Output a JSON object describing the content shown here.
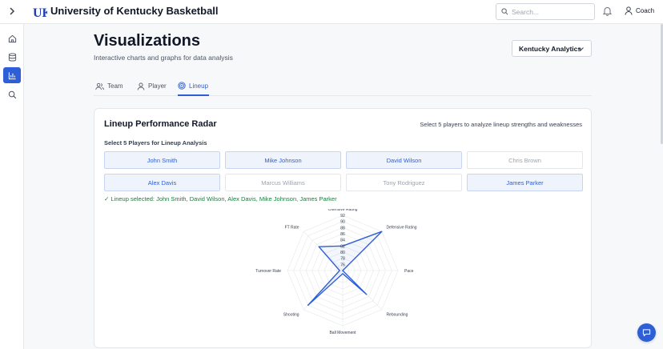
{
  "header": {
    "title": "University of Kentucky Basketball",
    "logo_icon": "uk-logo-icon",
    "search_placeholder": "Search...",
    "user_label": "Coach"
  },
  "page": {
    "title": "Visualizations",
    "subtitle": "Interactive charts and graphs for data analysis",
    "org_select": "Kentucky Analytics"
  },
  "tabs": [
    {
      "label": "Team",
      "icon": "users-icon",
      "active": false
    },
    {
      "label": "Player",
      "icon": "user-icon",
      "active": false
    },
    {
      "label": "Lineup",
      "icon": "target-icon",
      "active": true
    }
  ],
  "card": {
    "title": "Lineup Performance Radar",
    "hint": "Select 5 players to analyze lineup strengths and weaknesses",
    "section_label": "Select 5 Players for Lineup Analysis",
    "players": [
      {
        "name": "John Smith",
        "selected": true
      },
      {
        "name": "Mike Johnson",
        "selected": true
      },
      {
        "name": "David Wilson",
        "selected": true
      },
      {
        "name": "Chris Brown",
        "selected": false
      },
      {
        "name": "Alex Davis",
        "selected": true
      },
      {
        "name": "Marcus Williams",
        "selected": false
      },
      {
        "name": "Tony Rodriguez",
        "selected": false
      },
      {
        "name": "James Parker",
        "selected": true
      }
    ],
    "lineup_message": "✓ Lineup selected: John Smith, David Wilson, Alex Davis, Mike Johnson, James Parker"
  },
  "colors": {
    "accent": "#2f5fd6",
    "success": "#15803d"
  },
  "chart_data": {
    "type": "radar",
    "axes": [
      "Offensive Rating",
      "Defensive Rating",
      "Pace",
      "Rebounding",
      "Ball Movement",
      "Shooting",
      "Turnover Rate",
      "FT Rate"
    ],
    "ticks": [
      76,
      78,
      80,
      82,
      84,
      86,
      88,
      90,
      92
    ],
    "range": [
      74,
      92
    ],
    "series": [
      {
        "values": [
          82,
          92,
          74,
          85,
          75,
          90,
          75,
          85
        ]
      }
    ]
  }
}
